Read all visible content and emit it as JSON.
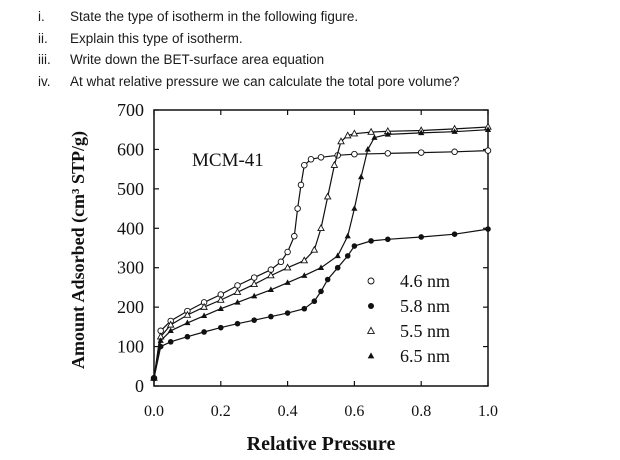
{
  "questions": [
    {
      "num": "i.",
      "text": "State the type of isotherm in the following figure."
    },
    {
      "num": "ii.",
      "text": "Explain this type of isotherm."
    },
    {
      "num": "iii.",
      "text": "Write down the BET-surface area equation"
    },
    {
      "num": "iv.",
      "text": "At what relative pressure we can calculate the total pore volume?"
    }
  ],
  "chart_data": {
    "type": "scatter",
    "title": "MCM-41",
    "xlabel": "Relative Pressure",
    "ylabel": "Amount Adsorbed (cm³ STP/g)",
    "xlim": [
      0.0,
      1.0
    ],
    "ylim": [
      0,
      700
    ],
    "xticks": [
      "0.0",
      "0.2",
      "0.4",
      "0.6",
      "0.8",
      "1.0"
    ],
    "yticks": [
      "0",
      "100",
      "200",
      "300",
      "400",
      "500",
      "600",
      "700"
    ],
    "legend_position": "bottom-right",
    "series": [
      {
        "name": "4.6 nm",
        "marker": "open-circle",
        "x": [
          0.0,
          0.02,
          0.05,
          0.1,
          0.15,
          0.2,
          0.25,
          0.3,
          0.35,
          0.38,
          0.4,
          0.42,
          0.43,
          0.44,
          0.45,
          0.47,
          0.5,
          0.55,
          0.6,
          0.7,
          0.8,
          0.9,
          1.0
        ],
        "y": [
          20,
          140,
          165,
          190,
          212,
          232,
          255,
          275,
          295,
          315,
          340,
          380,
          450,
          510,
          560,
          575,
          580,
          585,
          588,
          590,
          592,
          594,
          597
        ]
      },
      {
        "name": "5.8 nm",
        "marker": "filled-circle",
        "x": [
          0.0,
          0.02,
          0.05,
          0.1,
          0.15,
          0.2,
          0.25,
          0.3,
          0.35,
          0.4,
          0.45,
          0.48,
          0.5,
          0.52,
          0.55,
          0.58,
          0.6,
          0.65,
          0.7,
          0.8,
          0.9,
          1.0
        ],
        "y": [
          20,
          100,
          112,
          125,
          137,
          148,
          158,
          167,
          176,
          185,
          196,
          215,
          240,
          270,
          300,
          330,
          355,
          368,
          372,
          378,
          385,
          398
        ]
      },
      {
        "name": "5.5 nm",
        "marker": "open-triangle",
        "x": [
          0.0,
          0.02,
          0.05,
          0.1,
          0.15,
          0.2,
          0.25,
          0.3,
          0.35,
          0.4,
          0.45,
          0.48,
          0.5,
          0.52,
          0.54,
          0.56,
          0.58,
          0.6,
          0.65,
          0.7,
          0.8,
          0.9,
          1.0
        ],
        "y": [
          20,
          125,
          155,
          180,
          200,
          218,
          238,
          258,
          280,
          300,
          318,
          345,
          400,
          480,
          560,
          620,
          635,
          640,
          644,
          646,
          648,
          652,
          657
        ]
      },
      {
        "name": "6.5 nm",
        "marker": "filled-triangle",
        "x": [
          0.0,
          0.02,
          0.05,
          0.1,
          0.15,
          0.2,
          0.25,
          0.3,
          0.35,
          0.4,
          0.45,
          0.5,
          0.55,
          0.58,
          0.6,
          0.62,
          0.64,
          0.66,
          0.7,
          0.8,
          0.9,
          1.0
        ],
        "y": [
          20,
          115,
          140,
          160,
          178,
          196,
          212,
          228,
          244,
          262,
          280,
          300,
          330,
          380,
          450,
          530,
          600,
          630,
          638,
          642,
          645,
          650
        ]
      }
    ]
  }
}
